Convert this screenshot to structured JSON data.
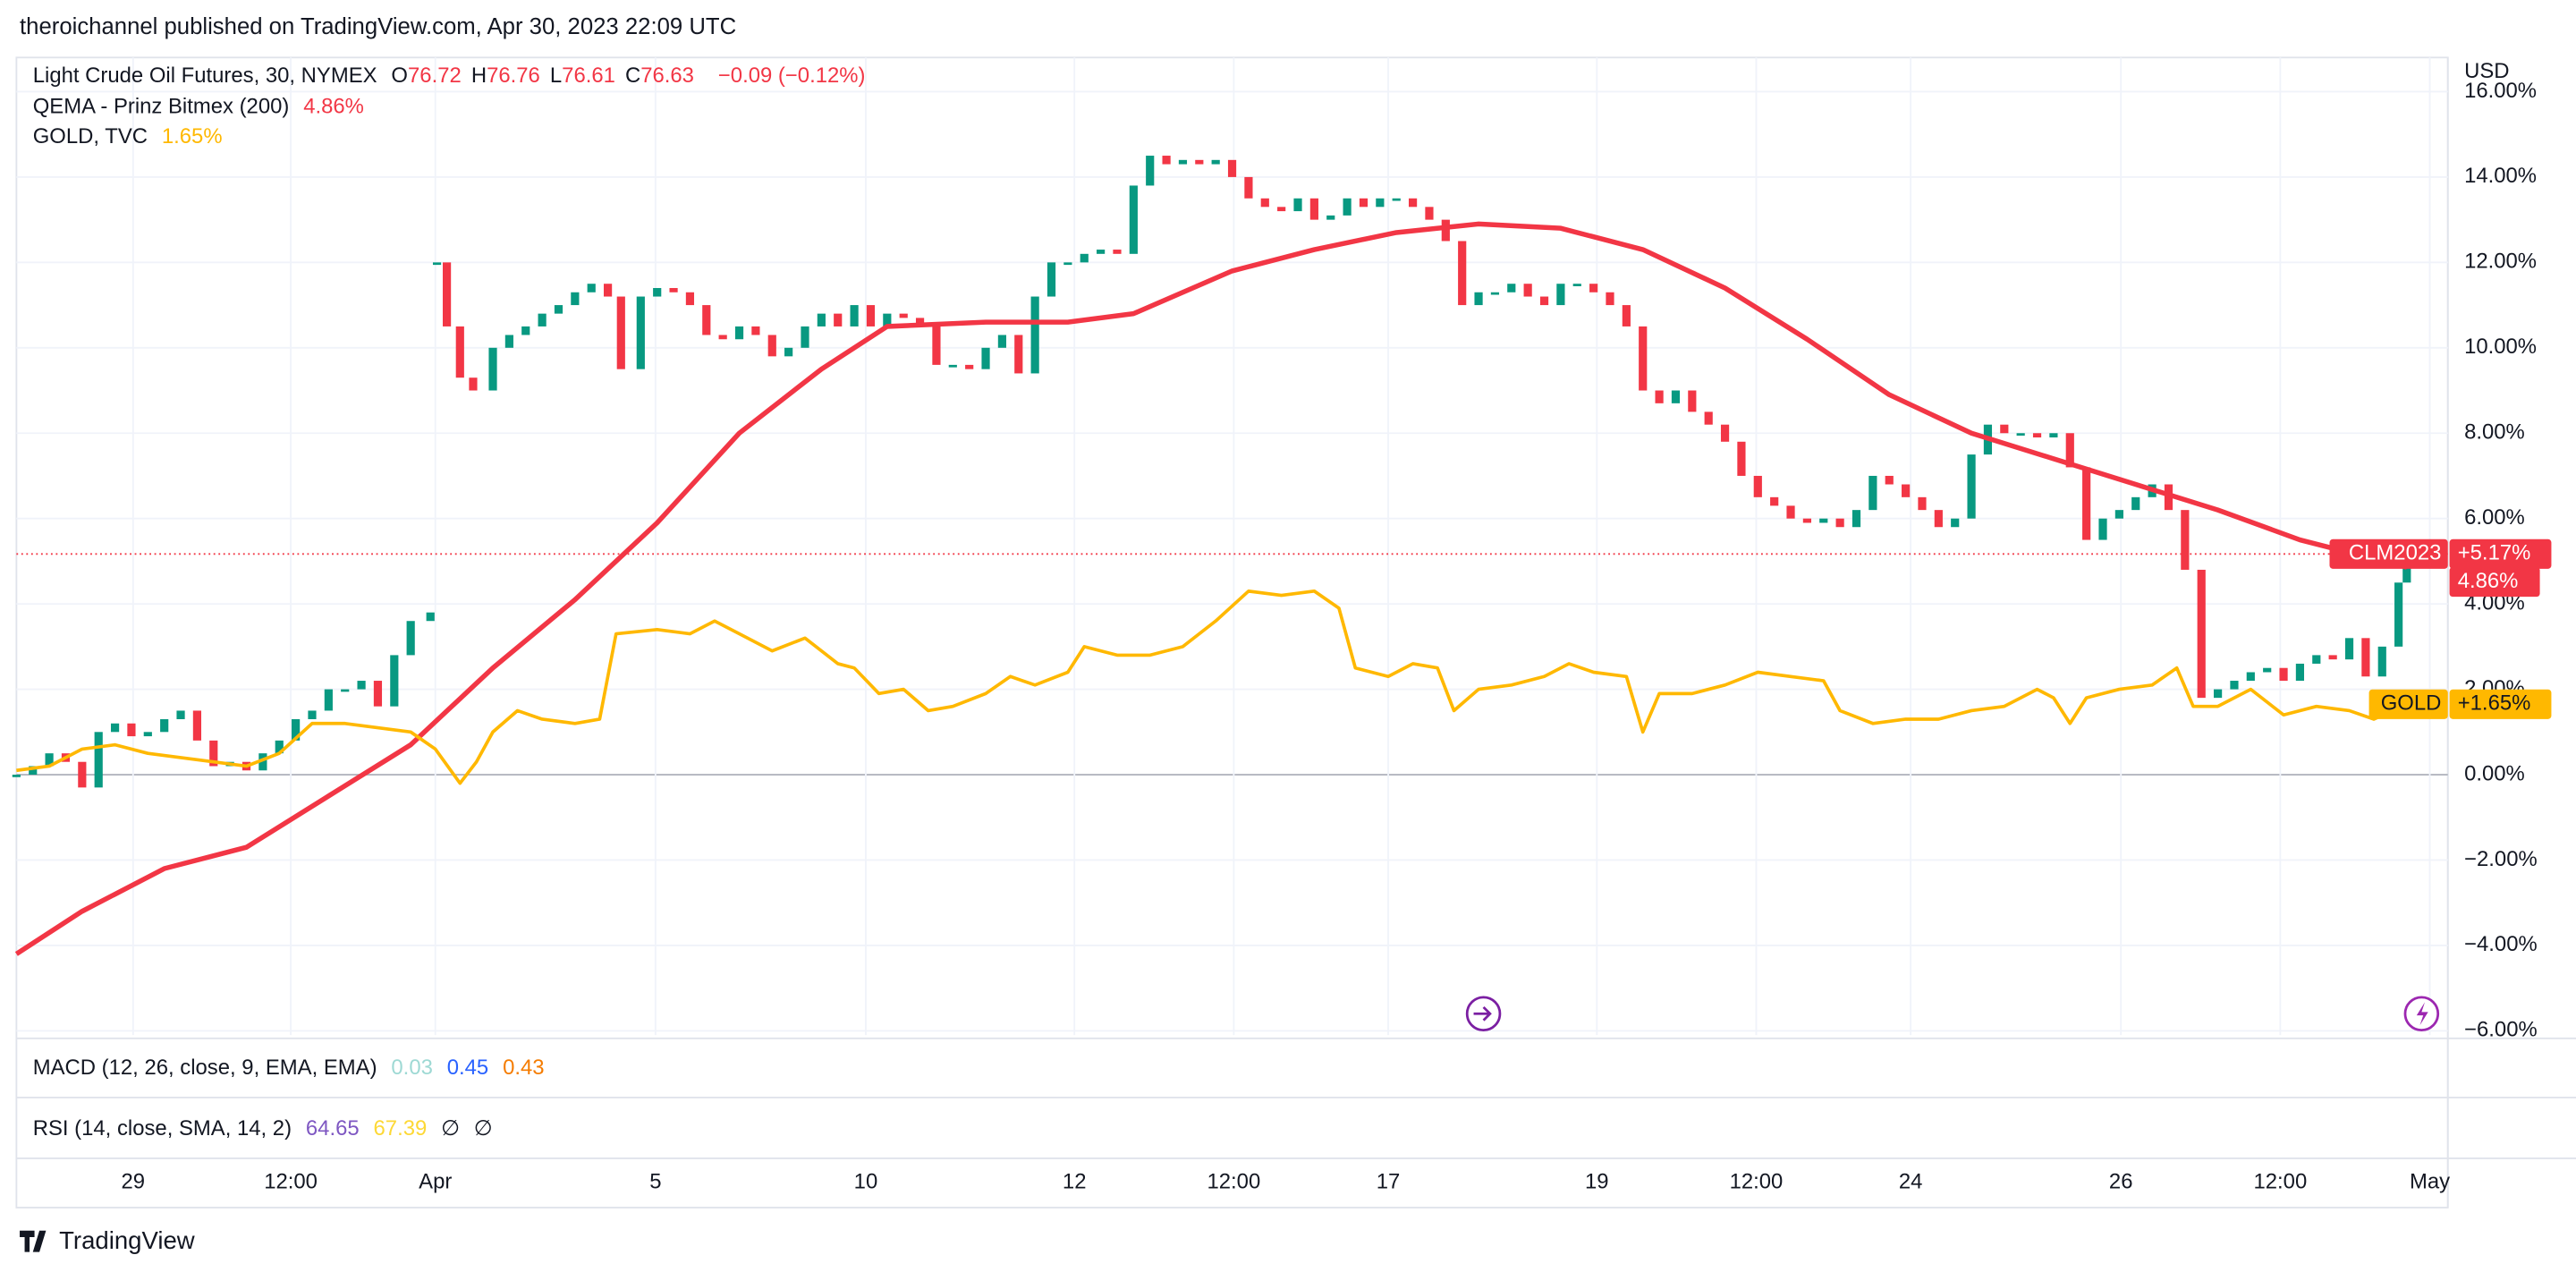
{
  "header": {
    "published": "theroichannel published on TradingView.com, Apr 30, 2023 22:09 UTC"
  },
  "legend": {
    "crude": {
      "name": "Light Crude Oil Futures, 30, NYMEX",
      "ohlc": [
        {
          "label": "O",
          "value": "76.72"
        },
        {
          "label": "H",
          "value": "76.76"
        },
        {
          "label": "L",
          "value": "76.61"
        },
        {
          "label": "C",
          "value": "76.63"
        }
      ],
      "change": "−0.09 (−0.12%)"
    },
    "qema": {
      "name": "QEMA - Prinz Bitmex (200)",
      "value": "4.86%"
    },
    "gold": {
      "name": "GOLD, TVC",
      "value": "1.65%"
    }
  },
  "chart_data": {
    "type": "line",
    "currency": "USD",
    "grid": true,
    "xlim": [
      10,
      1490
    ],
    "xticks": [
      {
        "value": 81,
        "label": "29"
      },
      {
        "value": 177,
        "label": "12:00"
      },
      {
        "value": 265,
        "label": "Apr"
      },
      {
        "value": 399,
        "label": "5"
      },
      {
        "value": 527,
        "label": "10"
      },
      {
        "value": 654,
        "label": "12"
      },
      {
        "value": 751,
        "label": "12:00"
      },
      {
        "value": 845,
        "label": "17"
      },
      {
        "value": 972,
        "label": "19"
      },
      {
        "value": 1069,
        "label": "12:00"
      },
      {
        "value": 1163,
        "label": "24"
      },
      {
        "value": 1291,
        "label": "26"
      },
      {
        "value": 1388,
        "label": "12:00"
      },
      {
        "value": 1479,
        "label": "May"
      }
    ],
    "ylim": [
      -6.1,
      16.8
    ],
    "yticks": [
      {
        "value": -6,
        "label": "−6.00%"
      },
      {
        "value": -4,
        "label": "−4.00%"
      },
      {
        "value": -2,
        "label": "−2.00%"
      },
      {
        "value": 0,
        "label": "0.00%"
      },
      {
        "value": 2,
        "label": "2.00%"
      },
      {
        "value": 4,
        "label": "4.00%"
      },
      {
        "value": 6,
        "label": "6.00%"
      },
      {
        "value": 8,
        "label": "8.00%"
      },
      {
        "value": 10,
        "label": "10.00%"
      },
      {
        "value": 12,
        "label": "12.00%"
      },
      {
        "value": 14,
        "label": "14.00%"
      },
      {
        "value": 16,
        "label": "16.00%"
      }
    ],
    "series": [
      {
        "name": "CLM2023",
        "kind": "candles",
        "up_color": "#089981",
        "down_color": "#f23645",
        "color": "#f23645",
        "last_label": "+5.17%",
        "marker_line": true,
        "x": [
          10,
          20,
          30,
          40,
          50,
          60,
          70,
          80,
          90,
          100,
          110,
          120,
          130,
          140,
          150,
          160,
          170,
          180,
          190,
          200,
          210,
          220,
          230,
          240,
          250,
          262,
          264,
          266,
          272,
          280,
          288,
          300,
          310,
          320,
          330,
          340,
          350,
          360,
          370,
          378,
          390,
          400,
          410,
          420,
          430,
          440,
          450,
          460,
          470,
          480,
          490,
          500,
          510,
          520,
          530,
          540,
          550,
          560,
          570,
          580,
          590,
          600,
          610,
          620,
          630,
          640,
          650,
          660,
          670,
          680,
          690,
          700,
          710,
          720,
          730,
          740,
          750,
          760,
          770,
          780,
          790,
          800,
          810,
          820,
          830,
          840,
          850,
          860,
          870,
          880,
          890,
          900,
          910,
          920,
          930,
          940,
          950,
          960,
          970,
          980,
          990,
          1000,
          1010,
          1020,
          1030,
          1040,
          1050,
          1060,
          1070,
          1080,
          1090,
          1100,
          1110,
          1120,
          1130,
          1140,
          1150,
          1160,
          1170,
          1180,
          1190,
          1200,
          1210,
          1220,
          1230,
          1240,
          1250,
          1260,
          1270,
          1280,
          1290,
          1300,
          1310,
          1320,
          1330,
          1340,
          1350,
          1360,
          1370,
          1380,
          1390,
          1400,
          1410,
          1420,
          1430,
          1440,
          1450,
          1460,
          1465
        ],
        "values": [
          0.0,
          0.2,
          0.5,
          0.3,
          -0.3,
          1.0,
          1.2,
          0.9,
          1.0,
          1.3,
          1.5,
          0.8,
          0.2,
          0.3,
          0.1,
          0.5,
          0.8,
          1.3,
          1.5,
          2.0,
          2.0,
          2.2,
          1.6,
          2.8,
          3.6,
          3.8,
          null,
          12.0,
          10.5,
          9.3,
          9.0,
          10.0,
          10.3,
          10.5,
          10.8,
          11.0,
          11.3,
          11.5,
          11.2,
          9.5,
          11.2,
          11.4,
          11.3,
          11.0,
          10.3,
          10.2,
          10.5,
          10.3,
          9.8,
          10.0,
          10.5,
          10.8,
          10.5,
          11.0,
          10.5,
          10.8,
          10.7,
          10.5,
          9.6,
          9.6,
          9.5,
          10.0,
          10.3,
          9.4,
          11.2,
          12.0,
          12.0,
          12.2,
          12.3,
          12.2,
          13.8,
          14.5,
          14.3,
          14.4,
          14.3,
          14.4,
          14.0,
          13.5,
          13.3,
          13.2,
          13.5,
          13.0,
          13.1,
          13.5,
          13.3,
          13.5,
          13.5,
          13.3,
          13.0,
          12.5,
          11.0,
          11.3,
          11.3,
          11.5,
          11.2,
          11.0,
          11.5,
          11.5,
          11.3,
          11.0,
          10.5,
          9.0,
          8.7,
          9.0,
          8.5,
          8.2,
          7.8,
          7.0,
          6.5,
          6.3,
          6.0,
          5.9,
          6.0,
          5.8,
          6.2,
          7.0,
          6.8,
          6.5,
          6.2,
          5.8,
          6.0,
          7.5,
          8.2,
          8.0,
          8.0,
          7.9,
          8.0,
          7.2,
          5.5,
          6.0,
          6.2,
          6.5,
          6.8,
          6.2,
          4.8,
          1.8,
          2.0,
          2.2,
          2.4,
          2.5,
          2.2,
          2.6,
          2.8,
          2.7,
          3.2,
          2.3,
          3.0,
          4.5,
          5.17
        ]
      },
      {
        "name": "QEMA",
        "kind": "line",
        "color": "#f23645",
        "width": 3,
        "last_label": "4.86%",
        "x": [
          10,
          50,
          100,
          150,
          200,
          250,
          300,
          350,
          400,
          450,
          500,
          540,
          600,
          650,
          690,
          750,
          800,
          850,
          900,
          950,
          1000,
          1050,
          1100,
          1150,
          1200,
          1250,
          1300,
          1350,
          1400,
          1465
        ],
        "values": [
          -4.2,
          -3.2,
          -2.2,
          -1.7,
          -0.5,
          0.7,
          2.5,
          4.1,
          5.9,
          8.0,
          9.5,
          10.5,
          10.6,
          10.6,
          10.8,
          11.8,
          12.3,
          12.7,
          12.9,
          12.8,
          12.3,
          11.4,
          10.2,
          8.9,
          8.0,
          7.4,
          6.8,
          6.2,
          5.5,
          4.86
        ]
      },
      {
        "name": "GOLD",
        "kind": "line",
        "color": "#ffb800",
        "width": 2,
        "last_label": "+1.65%",
        "tag": true,
        "x": [
          10,
          30,
          50,
          70,
          90,
          110,
          130,
          150,
          170,
          190,
          210,
          230,
          250,
          265,
          280,
          290,
          300,
          315,
          330,
          350,
          365,
          375,
          400,
          420,
          435,
          450,
          470,
          490,
          510,
          520,
          535,
          550,
          565,
          580,
          600,
          615,
          630,
          650,
          660,
          680,
          700,
          720,
          740,
          760,
          780,
          800,
          815,
          825,
          845,
          860,
          875,
          885,
          900,
          920,
          940,
          955,
          970,
          990,
          1000,
          1010,
          1030,
          1050,
          1070,
          1090,
          1110,
          1120,
          1140,
          1160,
          1180,
          1200,
          1220,
          1240,
          1250,
          1260,
          1270,
          1290,
          1310,
          1325,
          1335,
          1350,
          1370,
          1390,
          1410,
          1430,
          1445,
          1465
        ],
        "values": [
          0.1,
          0.2,
          0.6,
          0.7,
          0.5,
          0.4,
          0.3,
          0.2,
          0.5,
          1.2,
          1.2,
          1.1,
          1.0,
          0.6,
          -0.2,
          0.3,
          1.0,
          1.5,
          1.3,
          1.2,
          1.3,
          3.3,
          3.4,
          3.3,
          3.6,
          3.3,
          2.9,
          3.2,
          2.6,
          2.5,
          1.9,
          2.0,
          1.5,
          1.6,
          1.9,
          2.3,
          2.1,
          2.4,
          3.0,
          2.8,
          2.8,
          3.0,
          3.6,
          4.3,
          4.2,
          4.3,
          3.9,
          2.5,
          2.3,
          2.6,
          2.5,
          1.5,
          2.0,
          2.1,
          2.3,
          2.6,
          2.4,
          2.3,
          1.0,
          1.9,
          1.9,
          2.1,
          2.4,
          2.3,
          2.2,
          1.5,
          1.2,
          1.3,
          1.3,
          1.5,
          1.6,
          2.0,
          1.8,
          1.2,
          1.8,
          2.0,
          2.1,
          2.5,
          1.6,
          1.6,
          2.0,
          1.4,
          1.6,
          1.5,
          1.3,
          1.65
        ]
      }
    ]
  },
  "indicators": {
    "macd": {
      "name": "MACD (12, 26, close, 9, EMA, EMA)",
      "values": [
        "0.03",
        "0.45",
        "0.43"
      ]
    },
    "rsi": {
      "name": "RSI (14, close, SMA, 14, 2)",
      "values": [
        "64.65",
        "67.39",
        "∅",
        "∅"
      ]
    }
  },
  "footer": {
    "brand": "TradingView"
  }
}
